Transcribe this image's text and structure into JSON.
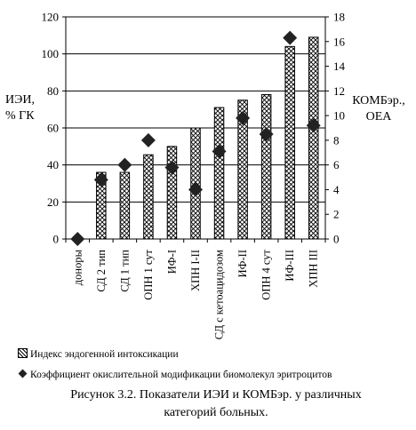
{
  "chart_data": {
    "type": "bar",
    "categories": [
      "доноры",
      "СД 2 тип",
      "СД 1 тип",
      "ОПН 1 сут",
      "ИФ-I",
      "ХПН I-II",
      "СД с кетоацидозом",
      "ИФ-II",
      "ОПН 4 сут",
      "ИФ-III",
      "ХПН III"
    ],
    "series": [
      {
        "name": "Индекс эндогенной интоксикации",
        "kind": "bar",
        "axis": "left",
        "values": [
          0,
          36,
          36,
          45.5,
          50,
          60,
          71,
          75,
          78,
          104,
          109
        ]
      },
      {
        "name": "Коэффициент окислительной модификации биомолекул эритроцитов",
        "kind": "scatter",
        "axis": "right",
        "values": [
          0,
          4.8,
          6.0,
          8.0,
          5.8,
          4.0,
          7.1,
          9.8,
          8.5,
          16.3,
          9.2
        ]
      }
    ],
    "ylabel": "ИЭИ,\n% ГК",
    "y2label": "КОМБэр.,\nОЕА",
    "ylim": [
      0,
      120
    ],
    "y2lim": [
      0,
      18
    ],
    "yticks": [
      "0",
      "20",
      "40",
      "60",
      "80",
      "100",
      "120"
    ],
    "y2ticks": [
      "0",
      "2",
      "4",
      "6",
      "8",
      "10",
      "12",
      "14",
      "16",
      "18"
    ],
    "grid": true,
    "legend_position": "bottom"
  },
  "legend": {
    "bar_label": "Индекс эндогенной интоксикации",
    "marker_label": "Коэффициент окислительной модификации биомолекул эритроцитов"
  },
  "caption": {
    "line1": "Рисунок 3.2.  Показатели ИЭИ и КОМБэр. у различных",
    "line2": "категорий больных."
  },
  "colors": {
    "bar_fill_pattern": "#000000",
    "marker": "#222222",
    "axis": "#000000"
  }
}
